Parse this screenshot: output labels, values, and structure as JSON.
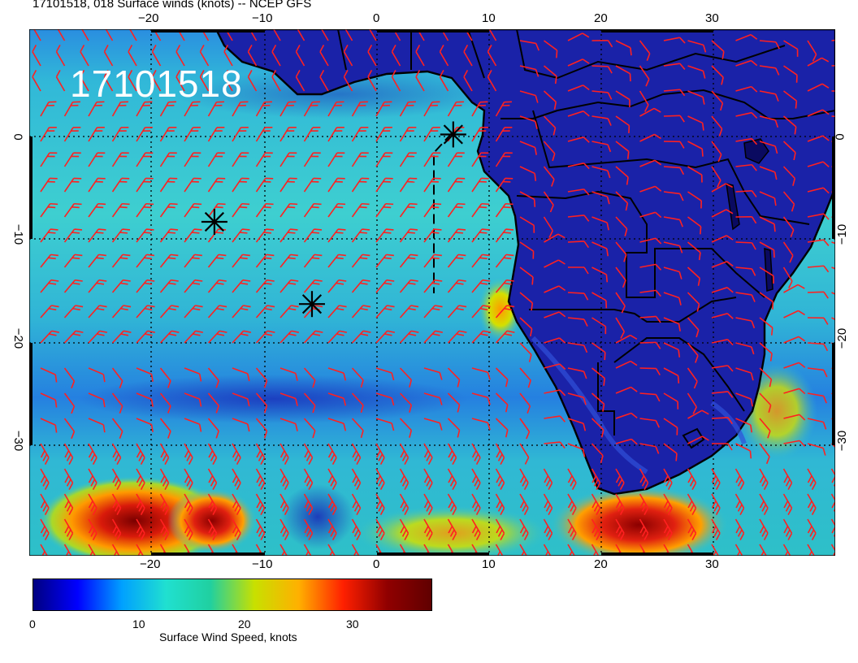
{
  "header": {
    "title": "17101518, 018 Surface winds (knots) -- NCEP GFS"
  },
  "map": {
    "stamp": "17101518",
    "lon_labels": [
      "−20",
      "−10",
      "0",
      "10",
      "20",
      "30"
    ],
    "lat_labels": [
      "0",
      "−10",
      "−20",
      "−30"
    ],
    "markers": [
      {
        "lon": 6.8,
        "lat": 0.2
      },
      {
        "lon": -14.5,
        "lat": -8.3
      },
      {
        "lon": -5.8,
        "lat": -16.3
      }
    ],
    "colors": {
      "barb": "#ff2020",
      "coast": "#000000",
      "ocean_calm": "#1f2db0",
      "ocean_mid": "#31c4cf",
      "strong": "#d81a0a"
    }
  },
  "colorbar": {
    "ticks": [
      "0",
      "10",
      "20",
      "30"
    ],
    "label": "Surface Wind Speed, knots",
    "range": [
      0,
      38
    ],
    "stops": [
      "#000080",
      "#0000ff",
      "#00a0ff",
      "#20e0d0",
      "#20d0a0",
      "#c8e000",
      "#ffb000",
      "#ff2000",
      "#900000",
      "#600000"
    ]
  }
}
